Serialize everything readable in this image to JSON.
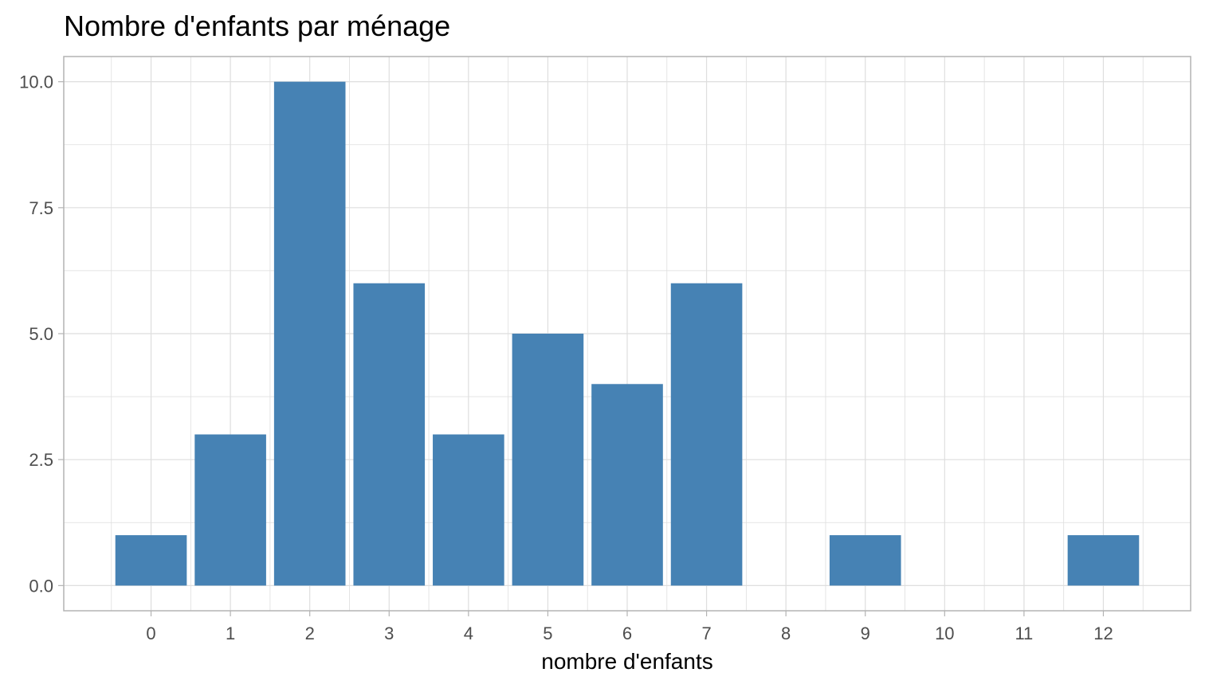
{
  "chart_data": {
    "type": "bar",
    "title": "Nombre d'enfants par ménage",
    "xlabel": "nombre d'enfants",
    "ylabel": "",
    "x_ticks": [
      "0",
      "1",
      "2",
      "3",
      "4",
      "5",
      "6",
      "7",
      "8",
      "9",
      "10",
      "11",
      "12"
    ],
    "y_ticks": [
      "0.0",
      "2.5",
      "5.0",
      "7.5",
      "10.0"
    ],
    "categories": [
      0,
      1,
      2,
      3,
      4,
      5,
      6,
      7,
      9,
      12
    ],
    "values": [
      1,
      3,
      10,
      6,
      3,
      5,
      4,
      6,
      1,
      1
    ],
    "xlim": [
      -0.5,
      12.5
    ],
    "ylim": [
      0,
      10
    ],
    "grid": true,
    "colors": {
      "bar": "#4682b4",
      "grid": "#dedede",
      "panel_border": "#b3b3b3",
      "tick_text": "#4d4d4d"
    }
  }
}
